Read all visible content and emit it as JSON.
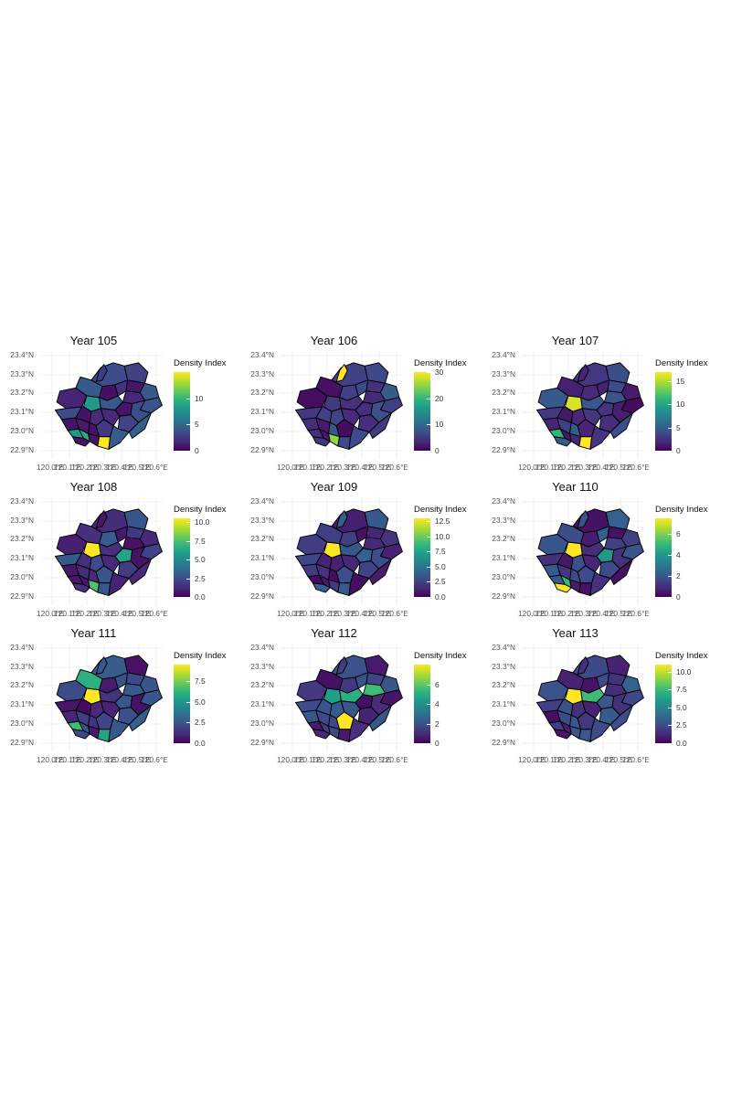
{
  "axes": {
    "y_ticks": [
      "23.4°N",
      "23.3°N",
      "23.2°N",
      "23.1°N",
      "23.0°N",
      "22.9°N"
    ],
    "x_ticks": [
      "120.0°E",
      "120.1°E",
      "120.2°E",
      "120.3°E",
      "120.4°E",
      "120.5°E",
      "120.6°E"
    ]
  },
  "legend_title": "Density Index",
  "colormap": [
    "#440154",
    "#482878",
    "#3e4a89",
    "#31688e",
    "#26828e",
    "#1f9e89",
    "#35b779",
    "#6ece58",
    "#b5de2b",
    "#fde725"
  ],
  "panels": [
    {
      "title": "Year 105",
      "max": 15,
      "ticks": [
        "0",
        "5",
        "10"
      ],
      "tick_values": [
        0,
        5,
        10
      ],
      "highlights": [
        {
          "region": 28,
          "value": 15
        },
        {
          "region": 26,
          "value": 9
        },
        {
          "region": 25,
          "value": 8
        },
        {
          "region": 11,
          "value": 8
        }
      ]
    },
    {
      "title": "Year 106",
      "max": 30,
      "ticks": [
        "0",
        "10",
        "20",
        "30"
      ],
      "tick_values": [
        0,
        10,
        20,
        30
      ],
      "highlights": [
        {
          "region": 3,
          "value": 30
        },
        {
          "region": 27,
          "value": 25
        },
        {
          "region": 11,
          "value": 5
        }
      ]
    },
    {
      "title": "Year 107",
      "max": 17,
      "ticks": [
        "0",
        "5",
        "10",
        "15"
      ],
      "tick_values": [
        0,
        5,
        10,
        15
      ],
      "highlights": [
        {
          "region": 11,
          "value": 16
        },
        {
          "region": 28,
          "value": 17
        },
        {
          "region": 25,
          "value": 11
        }
      ]
    },
    {
      "title": "Year 108",
      "max": 10.5,
      "ticks": [
        "0.0",
        "2.5",
        "5.0",
        "7.5",
        "10.0"
      ],
      "tick_values": [
        0,
        2.5,
        5,
        7.5,
        10
      ],
      "highlights": [
        {
          "region": 11,
          "value": 10.5
        },
        {
          "region": 27,
          "value": 7.5
        },
        {
          "region": 13,
          "value": 6
        }
      ]
    },
    {
      "title": "Year 109",
      "max": 13,
      "ticks": [
        "0.0",
        "2.5",
        "5.0",
        "7.5",
        "10.0",
        "12.5"
      ],
      "tick_values": [
        0,
        2.5,
        5,
        7.5,
        10,
        12.5
      ],
      "highlights": [
        {
          "region": 11,
          "value": 13
        },
        {
          "region": 13,
          "value": 4
        }
      ]
    },
    {
      "title": "Year 110",
      "max": 7.5,
      "ticks": [
        "0",
        "2",
        "4",
        "6"
      ],
      "tick_values": [
        0,
        2,
        4,
        6
      ],
      "highlights": [
        {
          "region": 11,
          "value": 7.5
        },
        {
          "region": 29,
          "value": 7.5
        },
        {
          "region": 26,
          "value": 5
        },
        {
          "region": 13,
          "value": 4
        }
      ]
    },
    {
      "title": "Year 111",
      "max": 9.5,
      "ticks": [
        "0.0",
        "2.5",
        "5.0",
        "7.5"
      ],
      "tick_values": [
        0,
        2.5,
        5,
        7.5
      ],
      "highlights": [
        {
          "region": 11,
          "value": 9.5
        },
        {
          "region": 25,
          "value": 6.5
        },
        {
          "region": 2,
          "value": 6
        },
        {
          "region": 28,
          "value": 5.5
        }
      ]
    },
    {
      "title": "Year 112",
      "max": 8,
      "ticks": [
        "0",
        "2",
        "4",
        "6"
      ],
      "tick_values": [
        0,
        2,
        4,
        6
      ],
      "highlights": [
        {
          "region": 24,
          "value": 8
        },
        {
          "region": 9,
          "value": 5.5
        },
        {
          "region": 12,
          "value": 5
        },
        {
          "region": 11,
          "value": 4.5
        }
      ]
    },
    {
      "title": "Year 113",
      "max": 11,
      "ticks": [
        "0.0",
        "2.5",
        "5.0",
        "7.5",
        "10.0"
      ],
      "tick_values": [
        0,
        2.5,
        5,
        7.5,
        10
      ],
      "highlights": [
        {
          "region": 11,
          "value": 11
        },
        {
          "region": 12,
          "value": 7.5
        }
      ]
    }
  ]
}
